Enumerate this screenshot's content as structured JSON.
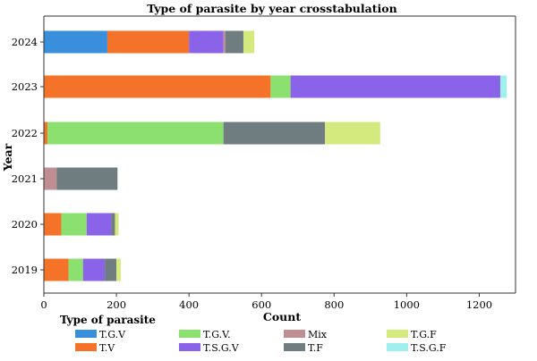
{
  "chart_data": {
    "type": "bar",
    "orientation": "horizontal",
    "stacked": true,
    "title": "Type of parasite by year crosstabulation",
    "xlabel": "Count",
    "ylabel": "Year",
    "xlim": [
      0,
      1300
    ],
    "xticks": [
      0,
      200,
      400,
      600,
      800,
      1000,
      1200
    ],
    "categories": [
      "2024",
      "2023",
      "2022",
      "2021",
      "2020",
      "2019"
    ],
    "legend_title": "Type of parasite",
    "legend_position": "bottom",
    "grid": false,
    "series": [
      {
        "name": "T.G.V",
        "color": "#3a8fdc",
        "values": [
          175,
          0,
          0,
          0,
          0,
          0
        ]
      },
      {
        "name": "T.V",
        "color": "#f57328",
        "values": [
          225,
          625,
          10,
          0,
          48,
          68
        ]
      },
      {
        "name": "T.G.V.",
        "color": "#8be06f",
        "values": [
          0,
          55,
          485,
          0,
          70,
          40
        ]
      },
      {
        "name": "T.S.G.V",
        "color": "#8a63e8",
        "values": [
          95,
          578,
          0,
          0,
          68,
          60
        ]
      },
      {
        "name": "Mix",
        "color": "#c08e92",
        "values": [
          5,
          0,
          0,
          35,
          0,
          0
        ]
      },
      {
        "name": "T.F",
        "color": "#6f7c80",
        "values": [
          50,
          0,
          280,
          168,
          10,
          32
        ]
      },
      {
        "name": "T.G.F",
        "color": "#d4ea7e",
        "values": [
          30,
          0,
          152,
          0,
          10,
          12
        ]
      },
      {
        "name": "T.S.G.F",
        "color": "#9ff0ec",
        "values": [
          0,
          18,
          0,
          0,
          0,
          0
        ]
      }
    ]
  }
}
